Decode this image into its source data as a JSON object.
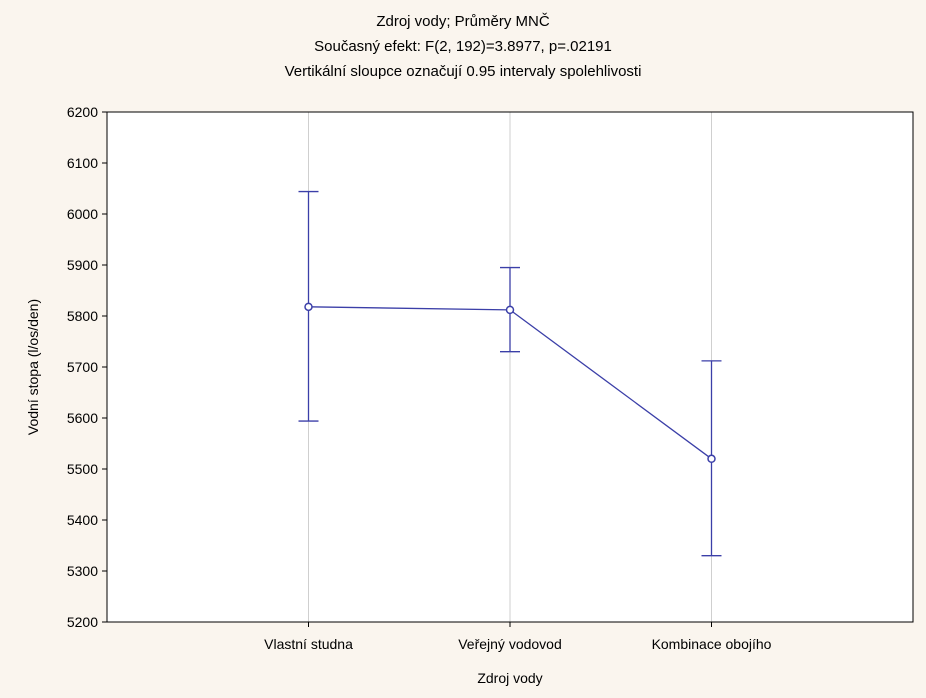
{
  "chart_data": {
    "type": "line",
    "title": "Zdroj vody; Průměry MNČ",
    "subtitle": "Současný efekt: F(2, 192)=3.8977, p=.02191",
    "note": "Vertikální sloupce označují 0.95 intervaly spolehlivosti",
    "xlabel": "Zdroj vody",
    "ylabel": "Vodní stopa (l/os/den)",
    "categories": [
      "Vlastní studna",
      "Veřejný vodovod",
      "Kombinace obojího"
    ],
    "series": [
      {
        "values": [
          5818,
          5812,
          5520
        ],
        "ci_lower": [
          5594,
          5730,
          5330
        ],
        "ci_upper": [
          6044,
          5895,
          5712
        ]
      }
    ],
    "ylim": [
      5200,
      6200
    ],
    "yticks": [
      5200,
      5300,
      5400,
      5500,
      5600,
      5700,
      5800,
      5900,
      6000,
      6100,
      6200
    ],
    "grid": true,
    "legend": "none",
    "colors": {
      "series": "#3b3fa8",
      "grid": "#cfcfcf",
      "axis": "#000000",
      "background": "#faf5ee",
      "plot_background": "#ffffff"
    }
  }
}
